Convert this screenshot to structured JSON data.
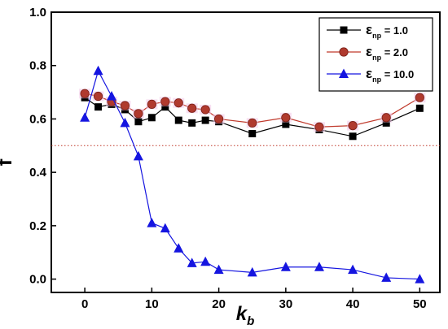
{
  "chart_data": {
    "type": "line",
    "xlabel": "k",
    "xlabel_sub": "b",
    "ylabel": "f",
    "xlim": [
      -5,
      53
    ],
    "ylim": [
      -0.05,
      1.0
    ],
    "xticks": [
      0,
      10,
      20,
      30,
      40,
      50
    ],
    "yticks": [
      0.0,
      0.2,
      0.4,
      0.6,
      0.8,
      1.0
    ],
    "ytick_labels": [
      "0.0",
      "0.2",
      "0.4",
      "0.6",
      "0.8",
      "1.0"
    ],
    "grid": false,
    "legend_position": "top-right",
    "reference_line": {
      "y": 0.5,
      "color": "#c0392b",
      "style": "dotted"
    },
    "series": [
      {
        "name": "np = 1.0",
        "legend_prefix": "ε",
        "legend_sub": "np",
        "legend_value": " = 1.0",
        "color": "#000000",
        "marker": "square",
        "x": [
          0,
          2,
          4,
          6,
          8,
          10,
          12,
          14,
          16,
          18,
          20,
          25,
          30,
          35,
          40,
          45,
          50
        ],
        "y": [
          0.68,
          0.645,
          0.655,
          0.635,
          0.59,
          0.605,
          0.645,
          0.595,
          0.585,
          0.595,
          0.59,
          0.545,
          0.58,
          0.56,
          0.535,
          0.585,
          0.64
        ]
      },
      {
        "name": "np = 2.0",
        "legend_prefix": "ε",
        "legend_sub": "np",
        "legend_value": " = 2.0",
        "color": "#c0392b",
        "marker": "circle",
        "x": [
          0,
          2,
          4,
          6,
          8,
          10,
          12,
          14,
          16,
          18,
          20,
          25,
          30,
          35,
          40,
          45,
          50
        ],
        "y": [
          0.695,
          0.685,
          0.665,
          0.65,
          0.62,
          0.655,
          0.665,
          0.66,
          0.64,
          0.635,
          0.6,
          0.585,
          0.605,
          0.57,
          0.575,
          0.605,
          0.68
        ]
      },
      {
        "name": "np = 10.0",
        "legend_prefix": "ε",
        "legend_sub": "np",
        "legend_value": " = 10.0",
        "color": "#1515e0",
        "marker": "triangle",
        "x": [
          0,
          2,
          4,
          6,
          8,
          10,
          12,
          14,
          16,
          18,
          20,
          25,
          30,
          35,
          40,
          45,
          50
        ],
        "y": [
          0.605,
          0.78,
          0.685,
          0.585,
          0.46,
          0.21,
          0.19,
          0.115,
          0.06,
          0.065,
          0.035,
          0.025,
          0.045,
          0.045,
          0.035,
          0.005,
          0.0
        ]
      }
    ]
  }
}
